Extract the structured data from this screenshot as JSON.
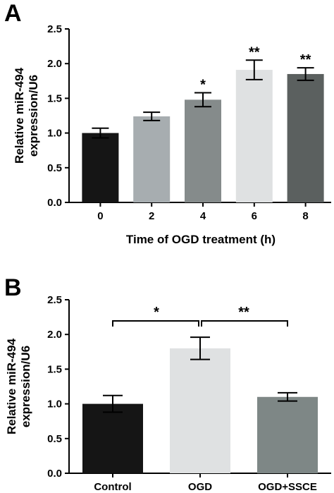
{
  "chart_data": [
    {
      "panel": "A",
      "type": "bar",
      "categories": [
        "0",
        "2",
        "4",
        "6",
        "8"
      ],
      "values": [
        1.0,
        1.24,
        1.48,
        1.91,
        1.85
      ],
      "errors": [
        0.07,
        0.06,
        0.1,
        0.14,
        0.09
      ],
      "colors": [
        "#151515",
        "#a7adb0",
        "#858b8b",
        "#dfe1e2",
        "#5b605f"
      ],
      "significance": [
        "",
        "",
        "*",
        "**",
        "**"
      ],
      "xlabel": "Time of OGD treatment (h)",
      "ylabel": [
        "Relative miR-494",
        "expression/U6"
      ],
      "ylim": [
        0,
        2.5
      ],
      "yticks": [
        "0.0",
        "0.5",
        "1.0",
        "1.5",
        "2.0",
        "2.5"
      ],
      "grid": false
    },
    {
      "panel": "B",
      "type": "bar",
      "categories": [
        "Control",
        "OGD",
        "OGD+SSCE"
      ],
      "values": [
        1.0,
        1.8,
        1.1
      ],
      "errors": [
        0.12,
        0.16,
        0.06
      ],
      "colors": [
        "#151515",
        "#dfe1e2",
        "#7e8786"
      ],
      "comparisons": [
        {
          "from": 0,
          "to": 1,
          "label": "*"
        },
        {
          "from": 1,
          "to": 2,
          "label": "**"
        }
      ],
      "xlabel": "",
      "ylabel": [
        "Relative miR-494",
        "expression/U6"
      ],
      "ylim": [
        0,
        2.5
      ],
      "yticks": [
        "0.0",
        "0.5",
        "1.0",
        "1.5",
        "2.0",
        "2.5"
      ],
      "grid": false
    }
  ]
}
